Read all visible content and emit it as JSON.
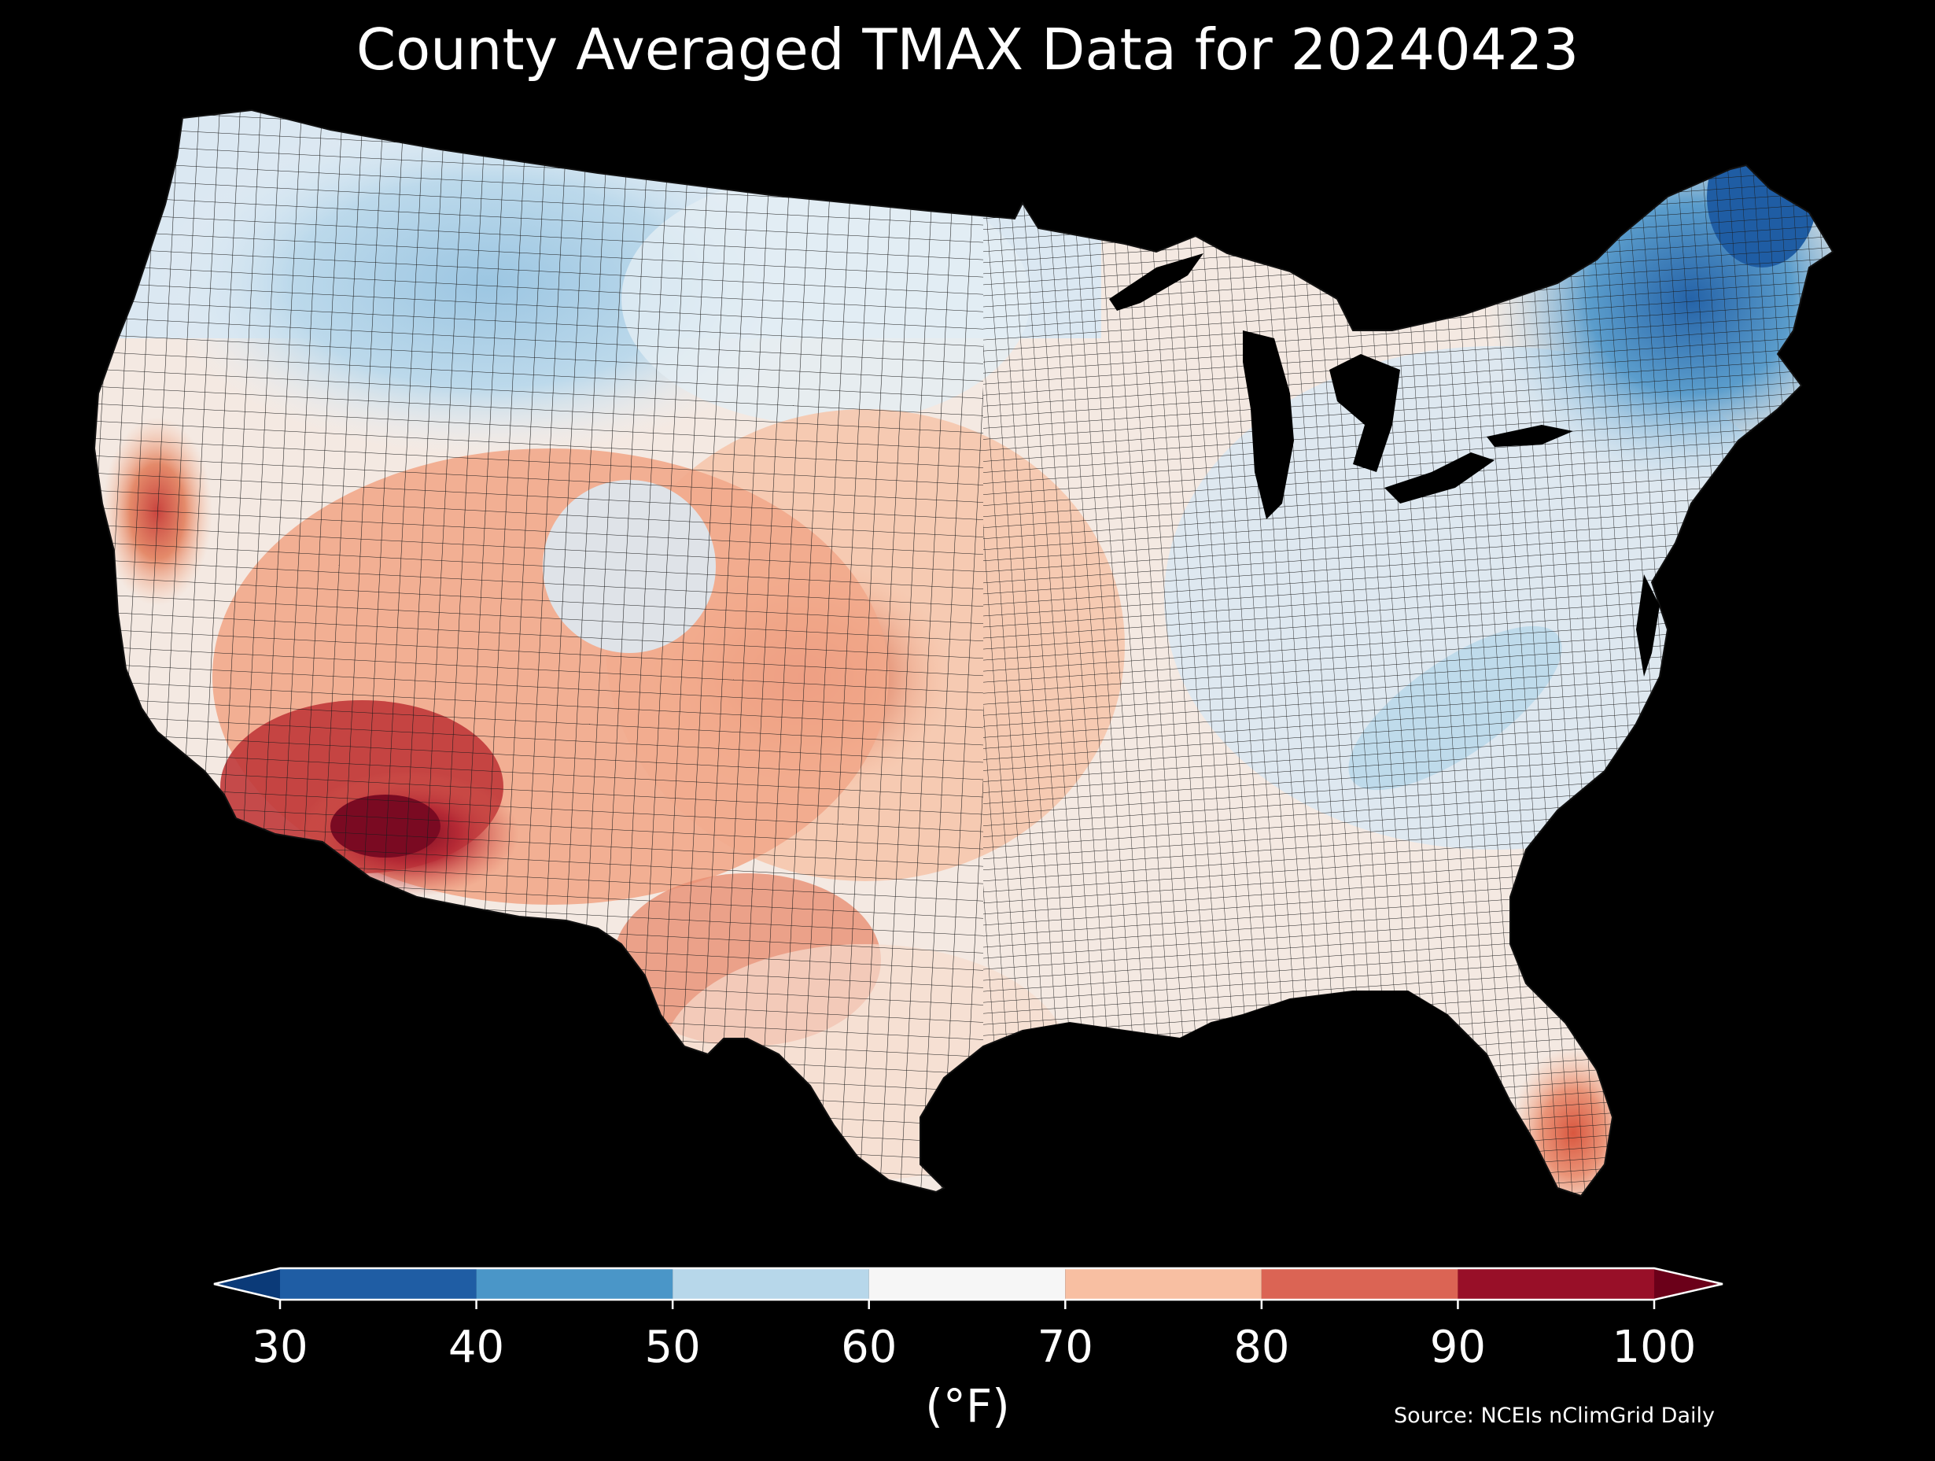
{
  "title": "County Averaged TMAX Data for 20240423",
  "colorbar": {
    "ticks": [
      "30",
      "40",
      "50",
      "60",
      "70",
      "80",
      "90",
      "100"
    ],
    "unit": "(°F)",
    "min": 30,
    "max": 100,
    "extend": "both",
    "under_color": "#0b3a78",
    "over_color": "#6b0019",
    "bins": [
      {
        "from": 30,
        "to": 40,
        "color": "#1f5da4"
      },
      {
        "from": 40,
        "to": 50,
        "color": "#4a96c8"
      },
      {
        "from": 50,
        "to": 60,
        "color": "#b7d7ea"
      },
      {
        "from": 60,
        "to": 70,
        "color": "#f6f6f6"
      },
      {
        "from": 70,
        "to": 80,
        "color": "#f8bfa2"
      },
      {
        "from": 80,
        "to": 90,
        "color": "#db6454"
      },
      {
        "from": 90,
        "to": 100,
        "color": "#980f28"
      }
    ]
  },
  "source": "Source: NCEIs nClimGrid Daily",
  "colors": {
    "background": "#000000",
    "water": "#000000",
    "county_border": "#1a1a1a"
  }
}
